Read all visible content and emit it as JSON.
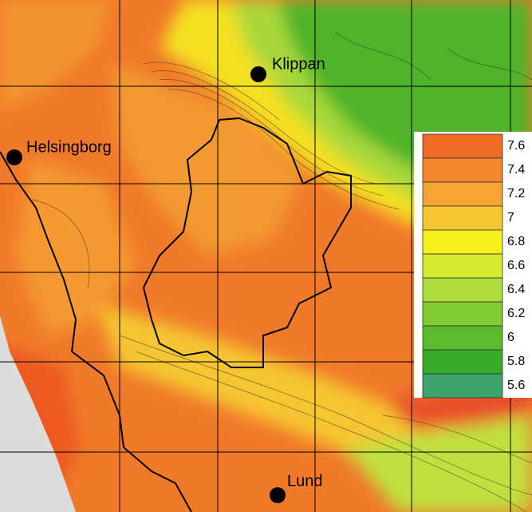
{
  "places": [
    {
      "label": "Klippan"
    },
    {
      "label": "Helsingborg"
    },
    {
      "label": "Lund"
    }
  ],
  "legend": {
    "items": [
      {
        "value": 7.6,
        "color": "#ef6a22"
      },
      {
        "value": 7.4,
        "color": "#f3872c"
      },
      {
        "value": 7.2,
        "color": "#f6a436"
      },
      {
        "value": 7,
        "color": "#f8c630"
      },
      {
        "value": 6.8,
        "color": "#f5ef1e"
      },
      {
        "value": 6.6,
        "color": "#d6ea32"
      },
      {
        "value": 6.4,
        "color": "#acdb3a"
      },
      {
        "value": 6.2,
        "color": "#82cb32"
      },
      {
        "value": 6,
        "color": "#5cbb2c"
      },
      {
        "value": 5.8,
        "color": "#37aa2a"
      },
      {
        "value": 5.6,
        "color": "#3ba46a"
      }
    ]
  }
}
